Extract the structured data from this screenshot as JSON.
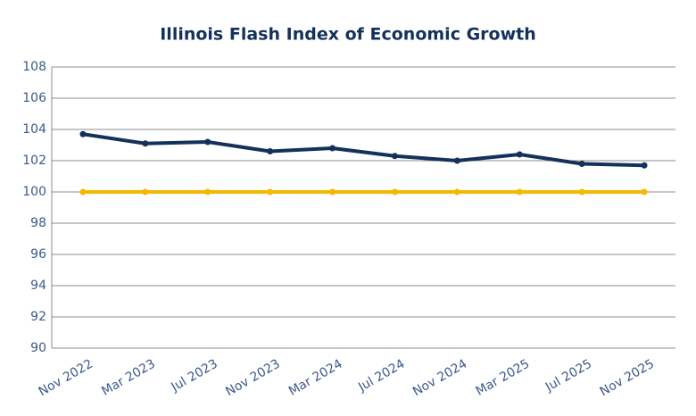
{
  "chart_data": {
    "type": "line",
    "title": "Illinois Flash Index of Economic Growth",
    "categories": [
      "Nov 2022",
      "Mar 2023",
      "Jul 2023",
      "Nov 2023",
      "Mar 2024",
      "Jul 2024",
      "Nov 2024",
      "Mar 2025",
      "Jul 2025",
      "Nov 2025"
    ],
    "series": [
      {
        "color": "#13315c",
        "values": [
          103.7,
          103.1,
          103.2,
          102.6,
          102.8,
          102.3,
          102.0,
          102.4,
          101.8,
          101.7
        ]
      },
      {
        "color": "#f5b800",
        "values": [
          100,
          100,
          100,
          100,
          100,
          100,
          100,
          100,
          100,
          100
        ]
      }
    ],
    "ylim": [
      90,
      108
    ],
    "yticks": [
      90,
      92,
      94,
      96,
      98,
      100,
      102,
      104,
      106,
      108
    ],
    "grid": true
  }
}
